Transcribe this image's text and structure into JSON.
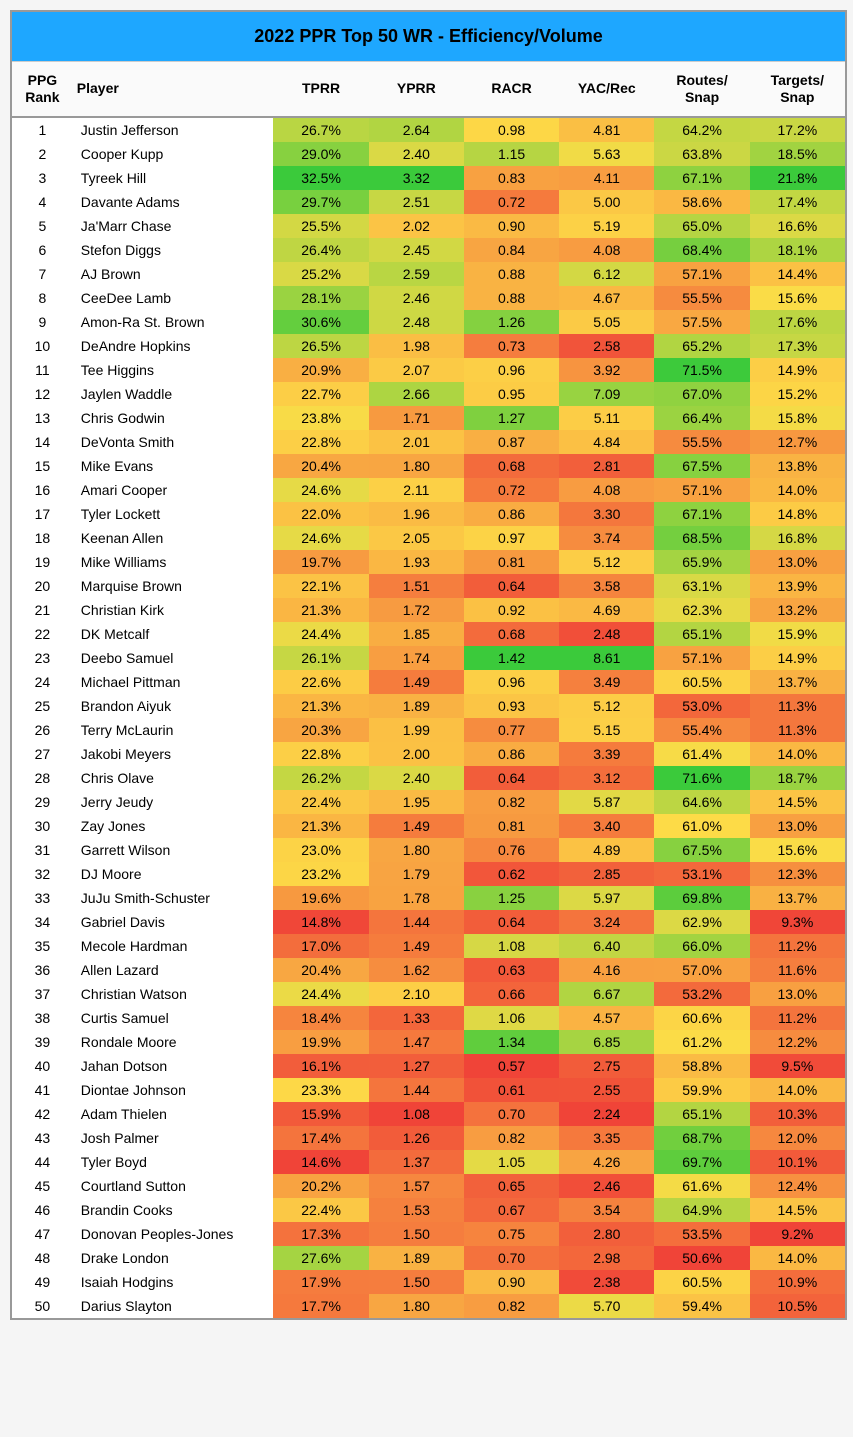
{
  "title": "2022 PPR Top 50 WR - Efficiency/Volume",
  "title_bg": "#1ea7ff",
  "title_color": "#000000",
  "columns": [
    "PPG\nRank",
    "Player",
    "TPRR",
    "YPRR",
    "RACR",
    "YAC/Rec",
    "Routes/\nSnap",
    "Targets/\nSnap"
  ],
  "ranges": {
    "tprr": {
      "min": 14.6,
      "max": 32.5
    },
    "yprr": {
      "min": 1.08,
      "max": 3.32
    },
    "racr": {
      "min": 0.57,
      "max": 1.42
    },
    "yac": {
      "min": 2.24,
      "max": 8.61
    },
    "routes": {
      "min": 50.6,
      "max": 71.6
    },
    "targets": {
      "min": 9.2,
      "max": 21.8
    }
  },
  "gradient": {
    "low": "#f04438",
    "mid": "#fddc47",
    "high": "#3bca3b"
  },
  "rows": [
    {
      "rank": 1,
      "player": "Justin Jefferson",
      "tprr": 26.7,
      "yprr": 2.64,
      "racr": 0.98,
      "yac": 4.81,
      "routes": 64.2,
      "targets": 17.2
    },
    {
      "rank": 2,
      "player": "Cooper Kupp",
      "tprr": 29.0,
      "yprr": 2.4,
      "racr": 1.15,
      "yac": 5.63,
      "routes": 63.8,
      "targets": 18.5
    },
    {
      "rank": 3,
      "player": "Tyreek Hill",
      "tprr": 32.5,
      "yprr": 3.32,
      "racr": 0.83,
      "yac": 4.11,
      "routes": 67.1,
      "targets": 21.8
    },
    {
      "rank": 4,
      "player": "Davante Adams",
      "tprr": 29.7,
      "yprr": 2.51,
      "racr": 0.72,
      "yac": 5.0,
      "routes": 58.6,
      "targets": 17.4
    },
    {
      "rank": 5,
      "player": "Ja'Marr Chase",
      "tprr": 25.5,
      "yprr": 2.02,
      "racr": 0.9,
      "yac": 5.19,
      "routes": 65.0,
      "targets": 16.6
    },
    {
      "rank": 6,
      "player": "Stefon Diggs",
      "tprr": 26.4,
      "yprr": 2.45,
      "racr": 0.84,
      "yac": 4.08,
      "routes": 68.4,
      "targets": 18.1
    },
    {
      "rank": 7,
      "player": "AJ Brown",
      "tprr": 25.2,
      "yprr": 2.59,
      "racr": 0.88,
      "yac": 6.12,
      "routes": 57.1,
      "targets": 14.4
    },
    {
      "rank": 8,
      "player": "CeeDee Lamb",
      "tprr": 28.1,
      "yprr": 2.46,
      "racr": 0.88,
      "yac": 4.67,
      "routes": 55.5,
      "targets": 15.6
    },
    {
      "rank": 9,
      "player": "Amon-Ra St. Brown",
      "tprr": 30.6,
      "yprr": 2.48,
      "racr": 1.26,
      "yac": 5.05,
      "routes": 57.5,
      "targets": 17.6
    },
    {
      "rank": 10,
      "player": "DeAndre Hopkins",
      "tprr": 26.5,
      "yprr": 1.98,
      "racr": 0.73,
      "yac": 2.58,
      "routes": 65.2,
      "targets": 17.3
    },
    {
      "rank": 11,
      "player": "Tee Higgins",
      "tprr": 20.9,
      "yprr": 2.07,
      "racr": 0.96,
      "yac": 3.92,
      "routes": 71.5,
      "targets": 14.9
    },
    {
      "rank": 12,
      "player": "Jaylen Waddle",
      "tprr": 22.7,
      "yprr": 2.66,
      "racr": 0.95,
      "yac": 7.09,
      "routes": 67.0,
      "targets": 15.2
    },
    {
      "rank": 13,
      "player": "Chris Godwin",
      "tprr": 23.8,
      "yprr": 1.71,
      "racr": 1.27,
      "yac": 5.11,
      "routes": 66.4,
      "targets": 15.8
    },
    {
      "rank": 14,
      "player": "DeVonta Smith",
      "tprr": 22.8,
      "yprr": 2.01,
      "racr": 0.87,
      "yac": 4.84,
      "routes": 55.5,
      "targets": 12.7
    },
    {
      "rank": 15,
      "player": "Mike Evans",
      "tprr": 20.4,
      "yprr": 1.8,
      "racr": 0.68,
      "yac": 2.81,
      "routes": 67.5,
      "targets": 13.8
    },
    {
      "rank": 16,
      "player": "Amari Cooper",
      "tprr": 24.6,
      "yprr": 2.11,
      "racr": 0.72,
      "yac": 4.08,
      "routes": 57.1,
      "targets": 14.0
    },
    {
      "rank": 17,
      "player": "Tyler Lockett",
      "tprr": 22.0,
      "yprr": 1.96,
      "racr": 0.86,
      "yac": 3.3,
      "routes": 67.1,
      "targets": 14.8
    },
    {
      "rank": 18,
      "player": "Keenan Allen",
      "tprr": 24.6,
      "yprr": 2.05,
      "racr": 0.97,
      "yac": 3.74,
      "routes": 68.5,
      "targets": 16.8
    },
    {
      "rank": 19,
      "player": "Mike Williams",
      "tprr": 19.7,
      "yprr": 1.93,
      "racr": 0.81,
      "yac": 5.12,
      "routes": 65.9,
      "targets": 13.0
    },
    {
      "rank": 20,
      "player": "Marquise Brown",
      "tprr": 22.1,
      "yprr": 1.51,
      "racr": 0.64,
      "yac": 3.58,
      "routes": 63.1,
      "targets": 13.9
    },
    {
      "rank": 21,
      "player": "Christian Kirk",
      "tprr": 21.3,
      "yprr": 1.72,
      "racr": 0.92,
      "yac": 4.69,
      "routes": 62.3,
      "targets": 13.2
    },
    {
      "rank": 22,
      "player": "DK Metcalf",
      "tprr": 24.4,
      "yprr": 1.85,
      "racr": 0.68,
      "yac": 2.48,
      "routes": 65.1,
      "targets": 15.9
    },
    {
      "rank": 23,
      "player": "Deebo Samuel",
      "tprr": 26.1,
      "yprr": 1.74,
      "racr": 1.42,
      "yac": 8.61,
      "routes": 57.1,
      "targets": 14.9
    },
    {
      "rank": 24,
      "player": "Michael Pittman",
      "tprr": 22.6,
      "yprr": 1.49,
      "racr": 0.96,
      "yac": 3.49,
      "routes": 60.5,
      "targets": 13.7
    },
    {
      "rank": 25,
      "player": "Brandon Aiyuk",
      "tprr": 21.3,
      "yprr": 1.89,
      "racr": 0.93,
      "yac": 5.12,
      "routes": 53.0,
      "targets": 11.3
    },
    {
      "rank": 26,
      "player": "Terry McLaurin",
      "tprr": 20.3,
      "yprr": 1.99,
      "racr": 0.77,
      "yac": 5.15,
      "routes": 55.4,
      "targets": 11.3
    },
    {
      "rank": 27,
      "player": "Jakobi Meyers",
      "tprr": 22.8,
      "yprr": 2.0,
      "racr": 0.86,
      "yac": 3.39,
      "routes": 61.4,
      "targets": 14.0
    },
    {
      "rank": 28,
      "player": "Chris Olave",
      "tprr": 26.2,
      "yprr": 2.4,
      "racr": 0.64,
      "yac": 3.12,
      "routes": 71.6,
      "targets": 18.7
    },
    {
      "rank": 29,
      "player": "Jerry Jeudy",
      "tprr": 22.4,
      "yprr": 1.95,
      "racr": 0.82,
      "yac": 5.87,
      "routes": 64.6,
      "targets": 14.5
    },
    {
      "rank": 30,
      "player": "Zay Jones",
      "tprr": 21.3,
      "yprr": 1.49,
      "racr": 0.81,
      "yac": 3.4,
      "routes": 61.0,
      "targets": 13.0
    },
    {
      "rank": 31,
      "player": "Garrett Wilson",
      "tprr": 23.0,
      "yprr": 1.8,
      "racr": 0.76,
      "yac": 4.89,
      "routes": 67.5,
      "targets": 15.6
    },
    {
      "rank": 32,
      "player": "DJ Moore",
      "tprr": 23.2,
      "yprr": 1.79,
      "racr": 0.62,
      "yac": 2.85,
      "routes": 53.1,
      "targets": 12.3
    },
    {
      "rank": 33,
      "player": "JuJu Smith-Schuster",
      "tprr": 19.6,
      "yprr": 1.78,
      "racr": 1.25,
      "yac": 5.97,
      "routes": 69.8,
      "targets": 13.7
    },
    {
      "rank": 34,
      "player": "Gabriel Davis",
      "tprr": 14.8,
      "yprr": 1.44,
      "racr": 0.64,
      "yac": 3.24,
      "routes": 62.9,
      "targets": 9.3
    },
    {
      "rank": 35,
      "player": "Mecole Hardman",
      "tprr": 17.0,
      "yprr": 1.49,
      "racr": 1.08,
      "yac": 6.4,
      "routes": 66.0,
      "targets": 11.2
    },
    {
      "rank": 36,
      "player": "Allen Lazard",
      "tprr": 20.4,
      "yprr": 1.62,
      "racr": 0.63,
      "yac": 4.16,
      "routes": 57.0,
      "targets": 11.6
    },
    {
      "rank": 37,
      "player": "Christian Watson",
      "tprr": 24.4,
      "yprr": 2.1,
      "racr": 0.66,
      "yac": 6.67,
      "routes": 53.2,
      "targets": 13.0
    },
    {
      "rank": 38,
      "player": "Curtis Samuel",
      "tprr": 18.4,
      "yprr": 1.33,
      "racr": 1.06,
      "yac": 4.57,
      "routes": 60.6,
      "targets": 11.2
    },
    {
      "rank": 39,
      "player": "Rondale Moore",
      "tprr": 19.9,
      "yprr": 1.47,
      "racr": 1.34,
      "yac": 6.85,
      "routes": 61.2,
      "targets": 12.2
    },
    {
      "rank": 40,
      "player": "Jahan Dotson",
      "tprr": 16.1,
      "yprr": 1.27,
      "racr": 0.57,
      "yac": 2.75,
      "routes": 58.8,
      "targets": 9.5
    },
    {
      "rank": 41,
      "player": "Diontae Johnson",
      "tprr": 23.3,
      "yprr": 1.44,
      "racr": 0.61,
      "yac": 2.55,
      "routes": 59.9,
      "targets": 14.0
    },
    {
      "rank": 42,
      "player": "Adam Thielen",
      "tprr": 15.9,
      "yprr": 1.08,
      "racr": 0.7,
      "yac": 2.24,
      "routes": 65.1,
      "targets": 10.3
    },
    {
      "rank": 43,
      "player": "Josh Palmer",
      "tprr": 17.4,
      "yprr": 1.26,
      "racr": 0.82,
      "yac": 3.35,
      "routes": 68.7,
      "targets": 12.0
    },
    {
      "rank": 44,
      "player": "Tyler Boyd",
      "tprr": 14.6,
      "yprr": 1.37,
      "racr": 1.05,
      "yac": 4.26,
      "routes": 69.7,
      "targets": 10.1
    },
    {
      "rank": 45,
      "player": "Courtland Sutton",
      "tprr": 20.2,
      "yprr": 1.57,
      "racr": 0.65,
      "yac": 2.46,
      "routes": 61.6,
      "targets": 12.4
    },
    {
      "rank": 46,
      "player": "Brandin Cooks",
      "tprr": 22.4,
      "yprr": 1.53,
      "racr": 0.67,
      "yac": 3.54,
      "routes": 64.9,
      "targets": 14.5
    },
    {
      "rank": 47,
      "player": "Donovan Peoples-Jones",
      "tprr": 17.3,
      "yprr": 1.5,
      "racr": 0.75,
      "yac": 2.8,
      "routes": 53.5,
      "targets": 9.2
    },
    {
      "rank": 48,
      "player": "Drake London",
      "tprr": 27.6,
      "yprr": 1.89,
      "racr": 0.7,
      "yac": 2.98,
      "routes": 50.6,
      "targets": 14.0
    },
    {
      "rank": 49,
      "player": "Isaiah Hodgins",
      "tprr": 17.9,
      "yprr": 1.5,
      "racr": 0.9,
      "yac": 2.38,
      "routes": 60.5,
      "targets": 10.9
    },
    {
      "rank": 50,
      "player": "Darius Slayton",
      "tprr": 17.7,
      "yprr": 1.8,
      "racr": 0.82,
      "yac": 5.7,
      "routes": 59.4,
      "targets": 10.5
    }
  ]
}
